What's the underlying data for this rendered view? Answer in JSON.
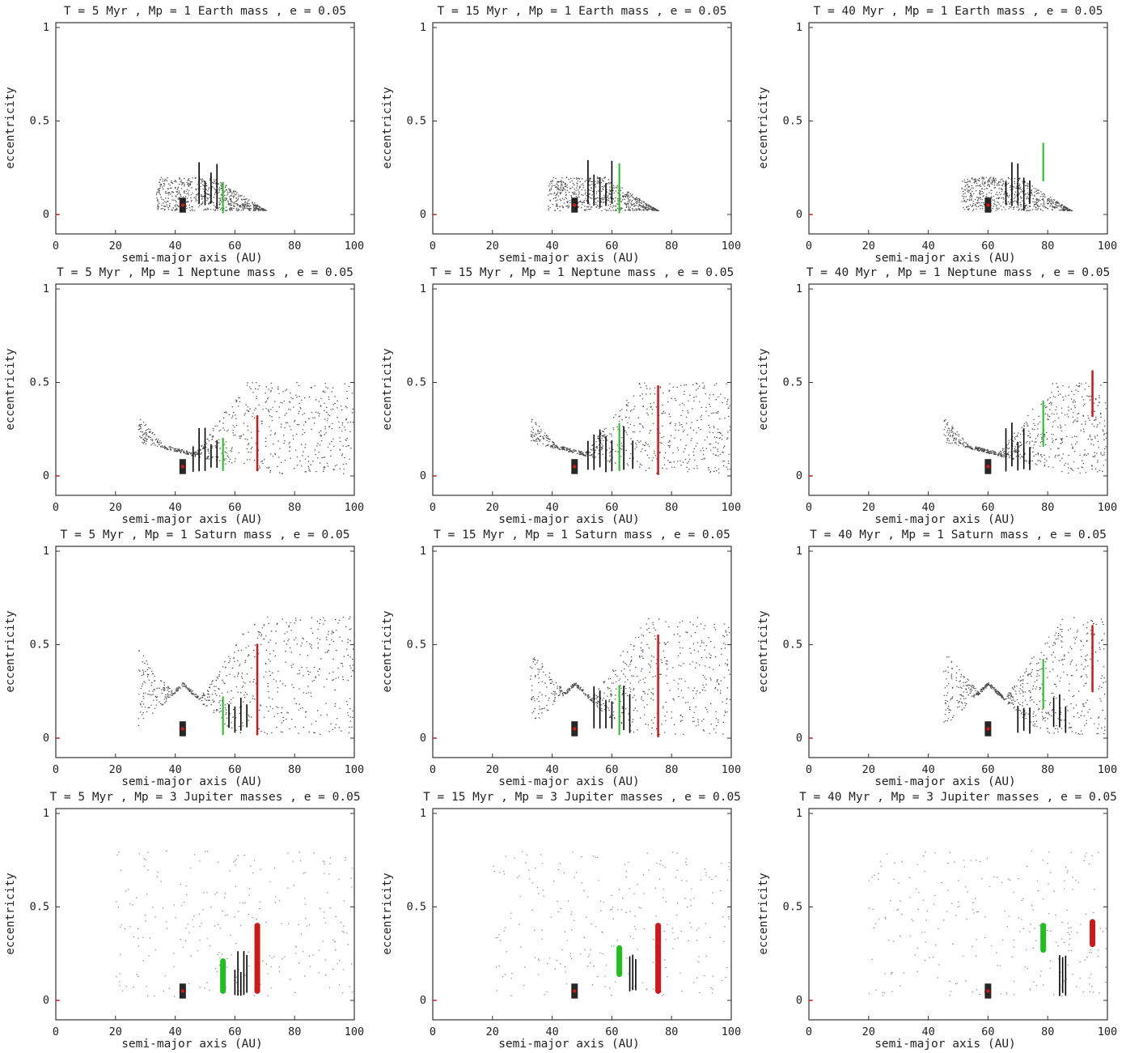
{
  "colors": {
    "background": "#ffffff",
    "points": "#000000",
    "inner_resonance": "#1fbf1f",
    "outer_resonance": "#d01818",
    "planet_marker": "#d01818",
    "axis": "#333333"
  },
  "chart_data": [
    {
      "type": "scatter",
      "title": "T = 5 Myr , Mp = 1 Earth mass , e = 0.05",
      "xlabel": "semi-major axis (AU)",
      "ylabel": "eccentricity",
      "xlim": [
        0,
        100
      ],
      "ylim": [
        0,
        1
      ],
      "xticks": [
        "0",
        "20",
        "40",
        "60",
        "80",
        "100"
      ],
      "yticks": [
        "0",
        "0.5",
        "1"
      ],
      "planet": {
        "a": 42.5,
        "e": 0.05
      },
      "green": {
        "a": 56,
        "emin": 0.01,
        "emax": 0.17
      },
      "red": null,
      "black_lines": [
        48,
        50,
        52,
        54
      ],
      "envelope": "earth",
      "spread": 0.5
    },
    {
      "type": "scatter",
      "title": "T = 15 Myr , Mp = 1 Earth mass , e = 0.05",
      "xlabel": "semi-major axis (AU)",
      "ylabel": "eccentricity",
      "xlim": [
        0,
        100
      ],
      "ylim": [
        0,
        1
      ],
      "xticks": [
        "0",
        "20",
        "40",
        "60",
        "80",
        "100"
      ],
      "yticks": [
        "0",
        "0.5",
        "1"
      ],
      "planet": {
        "a": 47.5,
        "e": 0.05
      },
      "green": {
        "a": 62.5,
        "emin": 0.01,
        "emax": 0.27
      },
      "red": null,
      "black_lines": [
        52,
        54,
        56,
        58,
        60
      ],
      "envelope": "earth",
      "spread": 0.7
    },
    {
      "type": "scatter",
      "title": "T = 40 Myr , Mp = 1 Earth mass , e = 0.05",
      "xlabel": "semi-major axis (AU)",
      "ylabel": "eccentricity",
      "xlim": [
        0,
        100
      ],
      "ylim": [
        0,
        1
      ],
      "xticks": [
        "0",
        "20",
        "40",
        "60",
        "80",
        "100"
      ],
      "yticks": [
        "0",
        "0.5",
        "1"
      ],
      "planet": {
        "a": 60,
        "e": 0.05
      },
      "green": {
        "a": 78.5,
        "emin": 0.18,
        "emax": 0.38
      },
      "red": null,
      "black_lines": [
        66,
        68,
        70,
        72,
        74
      ],
      "envelope": "earth",
      "spread": 1.0
    },
    {
      "type": "scatter",
      "title": "T = 5 Myr , Mp = 1 Neptune mass , e = 0.05",
      "xlabel": "semi-major axis (AU)",
      "ylabel": "eccentricity",
      "xlim": [
        0,
        100
      ],
      "ylim": [
        0,
        1
      ],
      "xticks": [
        "0",
        "20",
        "40",
        "60",
        "80",
        "100"
      ],
      "yticks": [
        "0",
        "0.5",
        "1"
      ],
      "planet": {
        "a": 42.5,
        "e": 0.05
      },
      "green": {
        "a": 56,
        "emin": 0.03,
        "emax": 0.2
      },
      "red": {
        "a": 67.5,
        "emin": 0.03,
        "emax": 0.32
      },
      "black_lines": [
        46,
        48,
        50,
        52,
        54
      ],
      "envelope": "neptune",
      "spread": 0.5
    },
    {
      "type": "scatter",
      "title": "T = 15 Myr , Mp = 1 Neptune mass , e = 0.05",
      "xlabel": "semi-major axis (AU)",
      "ylabel": "eccentricity",
      "xlim": [
        0,
        100
      ],
      "ylim": [
        0,
        1
      ],
      "xticks": [
        "0",
        "20",
        "40",
        "60",
        "80",
        "100"
      ],
      "yticks": [
        "0",
        "0.5",
        "1"
      ],
      "planet": {
        "a": 47.5,
        "e": 0.05
      },
      "green": {
        "a": 62.5,
        "emin": 0.03,
        "emax": 0.28
      },
      "red": {
        "a": 75.5,
        "emin": 0.01,
        "emax": 0.48
      },
      "black_lines": [
        52,
        54,
        56,
        58,
        60,
        64,
        67
      ],
      "envelope": "neptune",
      "spread": 0.7
    },
    {
      "type": "scatter",
      "title": "T = 40 Myr , Mp = 1 Neptune mass , e = 0.05",
      "xlabel": "semi-major axis (AU)",
      "ylabel": "eccentricity",
      "xlim": [
        0,
        100
      ],
      "ylim": [
        0,
        1
      ],
      "xticks": [
        "0",
        "20",
        "40",
        "60",
        "80",
        "100"
      ],
      "yticks": [
        "0",
        "0.5",
        "1"
      ],
      "planet": {
        "a": 60,
        "e": 0.05
      },
      "green": {
        "a": 78.5,
        "emin": 0.16,
        "emax": 0.4
      },
      "red": {
        "a": 95,
        "emin": 0.32,
        "emax": 0.56
      },
      "black_lines": [
        66,
        68,
        70,
        72,
        74
      ],
      "envelope": "neptune",
      "spread": 1.0
    },
    {
      "type": "scatter",
      "title": "T = 5 Myr , Mp = 1 Saturn mass , e = 0.05",
      "xlabel": "semi-major axis (AU)",
      "ylabel": "eccentricity",
      "xlim": [
        0,
        100
      ],
      "ylim": [
        0,
        1
      ],
      "xticks": [
        "0",
        "20",
        "40",
        "60",
        "80",
        "100"
      ],
      "yticks": [
        "0",
        "0.5",
        "1"
      ],
      "planet": {
        "a": 42.5,
        "e": 0.05
      },
      "green": {
        "a": 56,
        "emin": 0.02,
        "emax": 0.22
      },
      "red": {
        "a": 67.5,
        "emin": 0.02,
        "emax": 0.5
      },
      "black_lines": [
        58,
        60,
        62,
        64
      ],
      "envelope": "saturn",
      "spread": 0.5
    },
    {
      "type": "scatter",
      "title": "T = 15 Myr , Mp = 1 Saturn mass , e = 0.05",
      "xlabel": "semi-major axis (AU)",
      "ylabel": "eccentricity",
      "xlim": [
        0,
        100
      ],
      "ylim": [
        0,
        1
      ],
      "xticks": [
        "0",
        "20",
        "40",
        "60",
        "80",
        "100"
      ],
      "yticks": [
        "0",
        "0.5",
        "1"
      ],
      "planet": {
        "a": 47.5,
        "e": 0.05
      },
      "green": {
        "a": 62.5,
        "emin": 0.02,
        "emax": 0.28
      },
      "red": {
        "a": 75.5,
        "emin": 0.01,
        "emax": 0.55
      },
      "black_lines": [
        54,
        56,
        58,
        60,
        64,
        66
      ],
      "envelope": "saturn",
      "spread": 0.7
    },
    {
      "type": "scatter",
      "title": "T = 40 Myr , Mp = 1 Saturn mass , e = 0.05",
      "xlabel": "semi-major axis (AU)",
      "ylabel": "eccentricity",
      "xlim": [
        0,
        100
      ],
      "ylim": [
        0,
        1
      ],
      "xticks": [
        "0",
        "20",
        "40",
        "60",
        "80",
        "100"
      ],
      "yticks": [
        "0",
        "0.5",
        "1"
      ],
      "planet": {
        "a": 60,
        "e": 0.05
      },
      "green": {
        "a": 78.5,
        "emin": 0.16,
        "emax": 0.42
      },
      "red": {
        "a": 95,
        "emin": 0.25,
        "emax": 0.6
      },
      "black_lines": [
        70,
        72,
        74,
        82,
        84,
        86
      ],
      "envelope": "saturn",
      "spread": 1.0
    },
    {
      "type": "scatter",
      "title": "T = 5 Myr , Mp = 3 Jupiter masses , e = 0.05",
      "xlabel": "semi-major axis (AU)",
      "ylabel": "eccentricity",
      "xlim": [
        0,
        100
      ],
      "ylim": [
        0,
        1
      ],
      "xticks": [
        "0",
        "20",
        "40",
        "60",
        "80",
        "100"
      ],
      "yticks": [
        "0",
        "0.5",
        "1"
      ],
      "planet": {
        "a": 42.5,
        "e": 0.05
      },
      "green": {
        "a": 56,
        "emin": 0.05,
        "emax": 0.21
      },
      "red": {
        "a": 67.5,
        "emin": 0.05,
        "emax": 0.4
      },
      "black_lines": [
        60,
        61,
        62,
        63,
        64
      ],
      "envelope": "jupiter",
      "spread": 0.5
    },
    {
      "type": "scatter",
      "title": "T = 15 Myr , Mp = 3 Jupiter masses , e = 0.05",
      "xlabel": "semi-major axis (AU)",
      "ylabel": "eccentricity",
      "xlim": [
        0,
        100
      ],
      "ylim": [
        0,
        1
      ],
      "xticks": [
        "0",
        "20",
        "40",
        "60",
        "80",
        "100"
      ],
      "yticks": [
        "0",
        "0.5",
        "1"
      ],
      "planet": {
        "a": 47.5,
        "e": 0.05
      },
      "green": {
        "a": 62.5,
        "emin": 0.14,
        "emax": 0.28
      },
      "red": {
        "a": 75.5,
        "emin": 0.05,
        "emax": 0.4
      },
      "black_lines": [
        66,
        67,
        68
      ],
      "envelope": "jupiter",
      "spread": 0.7
    },
    {
      "type": "scatter",
      "title": "T = 40 Myr , Mp = 3 Jupiter masses , e = 0.05",
      "xlabel": "semi-major axis (AU)",
      "ylabel": "eccentricity",
      "xlim": [
        0,
        100
      ],
      "ylim": [
        0,
        1
      ],
      "xticks": [
        "0",
        "20",
        "40",
        "60",
        "80",
        "100"
      ],
      "yticks": [
        "0",
        "0.5",
        "1"
      ],
      "planet": {
        "a": 60,
        "e": 0.05
      },
      "green": {
        "a": 78.5,
        "emin": 0.27,
        "emax": 0.4
      },
      "red": {
        "a": 95,
        "emin": 0.3,
        "emax": 0.42
      },
      "black_lines": [
        84,
        85,
        86
      ],
      "envelope": "jupiter",
      "spread": 1.0
    }
  ]
}
